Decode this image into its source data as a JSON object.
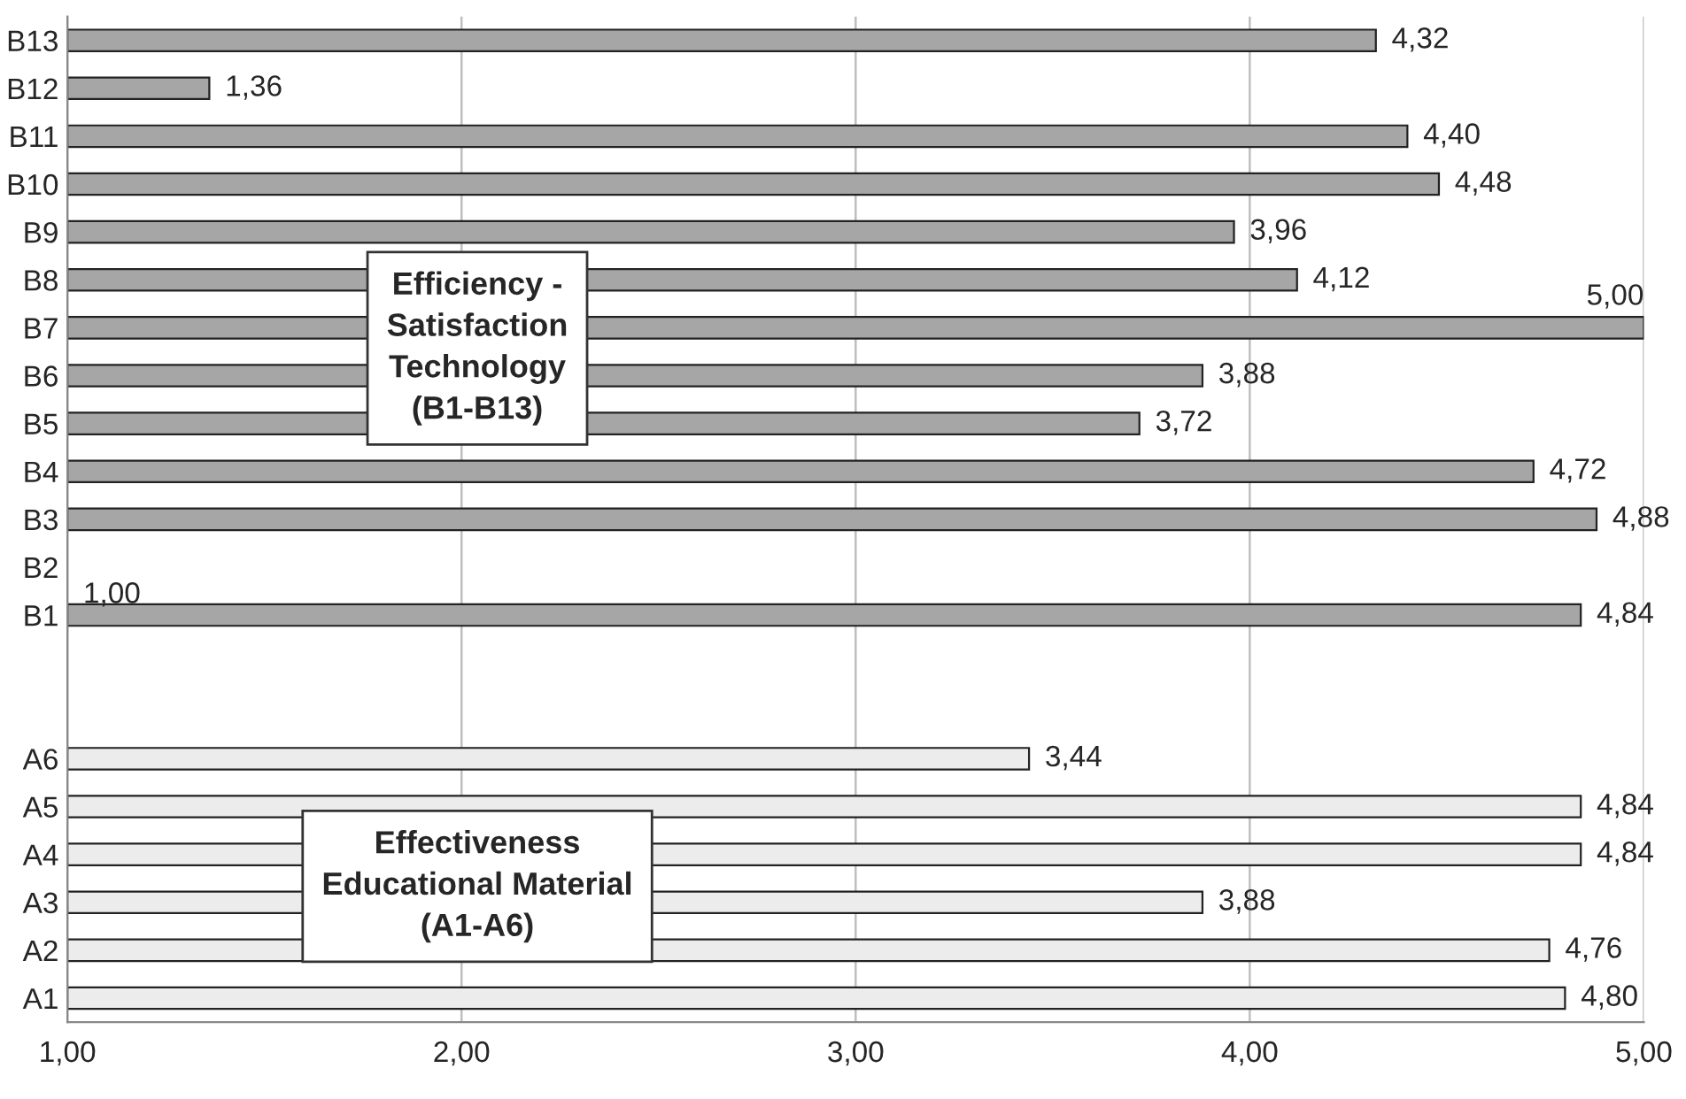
{
  "chart_data": {
    "type": "bar",
    "orientation": "horizontal",
    "categories": [
      "B13",
      "B12",
      "B11",
      "B10",
      "B9",
      "B8",
      "B7",
      "B6",
      "B5",
      "B4",
      "B3",
      "B2",
      "B1",
      null,
      null,
      "A6",
      "A5",
      "A4",
      "A3",
      "A2",
      "A1"
    ],
    "values": [
      4.32,
      1.36,
      4.4,
      4.48,
      3.96,
      4.12,
      5.0,
      3.88,
      3.72,
      4.72,
      4.88,
      1.0,
      4.84,
      null,
      null,
      3.44,
      4.84,
      4.84,
      3.88,
      4.76,
      4.8
    ],
    "value_labels": [
      "4,32",
      "1,36",
      "4,40",
      "4,48",
      "3,96",
      "4,12",
      "5,00",
      "3,88",
      "3,72",
      "4,72",
      "4,88",
      "1,00",
      "4,84",
      null,
      null,
      "3,44",
      "4,84",
      "4,84",
      "3,88",
      "4,76",
      "4,80"
    ],
    "colors": [
      "#a6a6a6",
      "#a6a6a6",
      "#a6a6a6",
      "#a6a6a6",
      "#a6a6a6",
      "#a6a6a6",
      "#a6a6a6",
      "#a6a6a6",
      "#a6a6a6",
      "#a6a6a6",
      "#a6a6a6",
      "#a6a6a6",
      "#a6a6a6",
      "#ffffff",
      "#ffffff",
      "#ececec",
      "#ececec",
      "#ececec",
      "#ececec",
      "#ececec",
      "#ececec"
    ],
    "xlim": [
      1,
      5
    ],
    "xticks": [
      {
        "value": 1,
        "label": "1,00"
      },
      {
        "value": 2,
        "label": "2,00"
      },
      {
        "value": 3,
        "label": "3,00"
      },
      {
        "value": 4,
        "label": "4,00"
      },
      {
        "value": 5,
        "label": "5,00"
      }
    ],
    "grid": "x",
    "annotations": [
      "Efficiency -\nSatisfaction\nTechnology\n(B1-B13)",
      "Effectiveness\nEducational Material\n(A1-A6)"
    ]
  }
}
